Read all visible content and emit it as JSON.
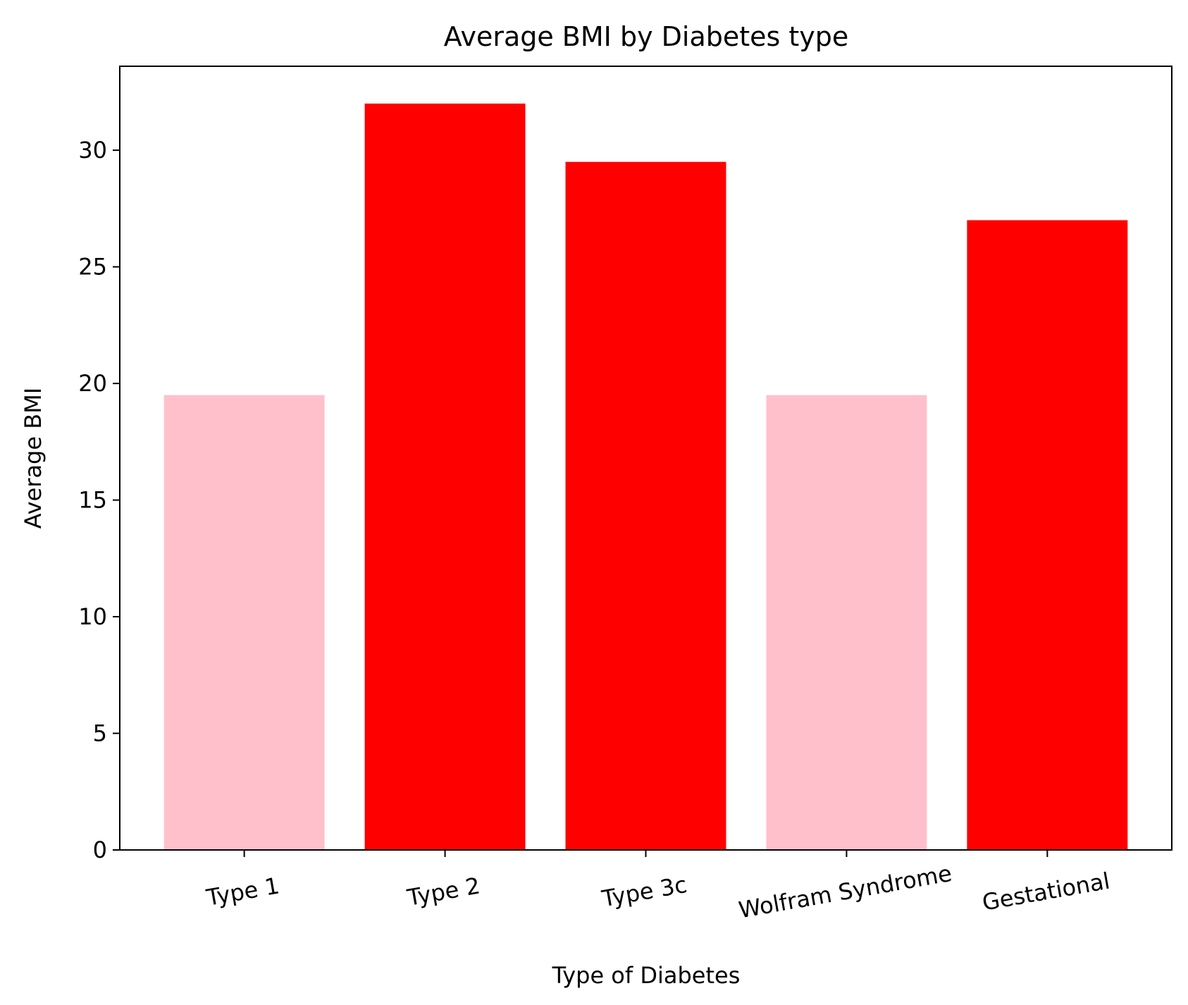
{
  "chart_data": {
    "type": "bar",
    "title": "Average BMI by Diabetes type",
    "xlabel": "Type of Diabetes",
    "ylabel": "Average BMI",
    "categories": [
      "Type 1",
      "Type 2",
      "Type 3c",
      "Wolfram Syndrome",
      "Gestational"
    ],
    "values": [
      19.5,
      32.0,
      29.5,
      19.5,
      27.0
    ],
    "bar_colors": [
      "#ffc0cb",
      "#ff0000",
      "#ff0000",
      "#ffc0cb",
      "#ff0000"
    ],
    "ylim": [
      0,
      33.6
    ],
    "yticks": [
      0,
      5,
      10,
      15,
      20,
      25,
      30
    ],
    "grid": false,
    "legend": "none"
  }
}
